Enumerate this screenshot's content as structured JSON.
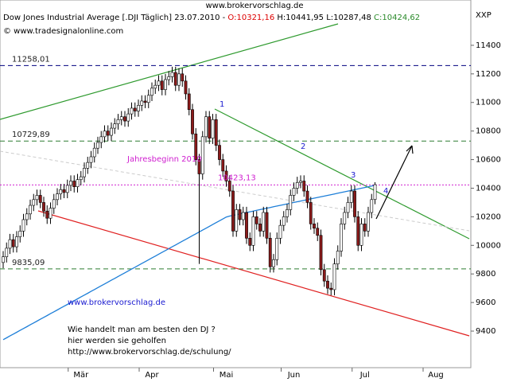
{
  "chart_data": {
    "type": "candlestick",
    "site_top": "www.brokervorschlag.de",
    "header": {
      "name": "Dow Jones Industrial Average [.DJI  Täglich] 23.07.2010 - ",
      "open": "O:10321,16",
      "high": "H:10441,95",
      "low": "L:10287,48",
      "close": "C:10424,62"
    },
    "copyright": "© www.tradesignalonline.com",
    "axis_label": "XXP",
    "watermark": "www.brokervorschlag.de",
    "promo": [
      "Wie handelt man am besten  den DJ ?",
      "hier werden sie geholfen",
      "http://www.brokervorschlag.de/schulung/"
    ],
    "annotation": "Jahresbeginn 2010",
    "wave_labels": [
      "1",
      "2",
      "3",
      "4"
    ],
    "categories": [
      null,
      null,
      null,
      null,
      null,
      null,
      null,
      null,
      null,
      null,
      null,
      null,
      null,
      null,
      null,
      null,
      null,
      null,
      null,
      null,
      null,
      null,
      null,
      "Mär",
      null,
      null,
      null,
      null,
      null,
      null,
      null,
      null,
      null,
      null,
      null,
      null,
      null,
      null,
      null,
      null,
      null,
      null,
      null,
      null,
      "Apr",
      null,
      null,
      null,
      null,
      null,
      null,
      null,
      null,
      null,
      null,
      null,
      null,
      null,
      null,
      null,
      null,
      null,
      null,
      null,
      null,
      null,
      "Mai",
      null,
      null,
      null,
      null,
      null,
      null,
      null,
      null,
      null,
      null,
      null,
      null,
      null,
      null,
      null,
      null,
      null,
      null,
      null,
      "Jun",
      null,
      null,
      null,
      null,
      null,
      null,
      null,
      null,
      null,
      null,
      null,
      null,
      null,
      null,
      null,
      null,
      null,
      null,
      null,
      null,
      "Jul",
      null,
      null,
      null,
      null,
      null,
      null,
      null,
      null,
      null,
      null,
      null,
      null,
      null,
      null,
      null,
      null,
      null,
      null,
      null,
      null,
      "Aug",
      null,
      null,
      null,
      null,
      null,
      null,
      null,
      null,
      null
    ],
    "open": [
      9880,
      9920,
      9980,
      10040,
      9990,
      10060,
      10100,
      10180,
      10220,
      10280,
      10320,
      10350,
      10300,
      10240,
      10190,
      10260,
      10320,
      10360,
      10390,
      10370,
      10420,
      10450,
      10410,
      10460,
      10480,
      10540,
      10580,
      10620,
      10680,
      10720,
      10760,
      10800,
      10770,
      10820,
      10850,
      10880,
      10900,
      10870,
      10920,
      10960,
      10940,
      10980,
      11010,
      11000,
      11050,
      11100,
      11120,
      11150,
      11090,
      11160,
      11180,
      11210,
      11120,
      11200,
      11150,
      11060,
      10950,
      10780,
      10600,
      10500,
      10760,
      10900,
      10750,
      10880,
      10700,
      10600,
      10520,
      10450,
      10380,
      10100,
      10250,
      10180,
      10230,
      10050,
      10000,
      10200,
      10150,
      10100,
      10230,
      10050,
      9850,
      9900,
      10050,
      10140,
      10200,
      10250,
      10350,
      10400,
      10440,
      10450,
      10380,
      10300,
      10150,
      10120,
      10070,
      9830,
      9750,
      9700,
      9690,
      9870,
      9960,
      10150,
      10230,
      10300,
      10380,
      10200,
      10000,
      10150,
      10100,
      10230,
      10321.16,
      null,
      null,
      null,
      null,
      null,
      null,
      null,
      null,
      null,
      null,
      null,
      null,
      null,
      null,
      null,
      null,
      null,
      null,
      null,
      null,
      null,
      null,
      null,
      null,
      null,
      null,
      null
    ],
    "high": [
      9960,
      10020,
      10080,
      10080,
      10100,
      10140,
      10220,
      10260,
      10320,
      10360,
      10390,
      10390,
      10340,
      10280,
      10300,
      10360,
      10400,
      10430,
      10430,
      10460,
      10490,
      10490,
      10500,
      10520,
      10580,
      10620,
      10660,
      10720,
      10760,
      10800,
      10840,
      10840,
      10860,
      10890,
      10920,
      10940,
      10940,
      10960,
      11000,
      11000,
      11020,
      11050,
      11050,
      11090,
      11140,
      11160,
      11190,
      11190,
      11200,
      11220,
      11250,
      11250,
      11240,
      11240,
      11190,
      11100,
      10990,
      10820,
      10640,
      10800,
      10940,
      10940,
      10920,
      10920,
      10740,
      10640,
      10560,
      10490,
      10420,
      10290,
      10290,
      10270,
      10270,
      10090,
      10240,
      10240,
      10190,
      10270,
      10270,
      10090,
      9940,
      10090,
      10180,
      10240,
      10290,
      10390,
      10440,
      10480,
      10490,
      10490,
      10420,
      10340,
      10190,
      10160,
      10110,
      9870,
      9790,
      9740,
      9910,
      10000,
      10190,
      10270,
      10340,
      10420,
      10420,
      10240,
      10190,
      10190,
      10270,
      10360,
      10441.95,
      null,
      null,
      null,
      null,
      null,
      null,
      null,
      null,
      null,
      null,
      null,
      null,
      null,
      null,
      null,
      null,
      null,
      null,
      null,
      null,
      null,
      null,
      null,
      null,
      null,
      null,
      null
    ],
    "low": [
      9840,
      9880,
      9940,
      9950,
      9950,
      10020,
      10060,
      10140,
      10180,
      10240,
      10280,
      10260,
      10200,
      10150,
      10150,
      10220,
      10280,
      10320,
      10330,
      10330,
      10380,
      10370,
      10370,
      10420,
      10440,
      10500,
      10540,
      10580,
      10640,
      10680,
      10720,
      10730,
      10730,
      10780,
      10810,
      10840,
      10830,
      10830,
      10880,
      10900,
      10900,
      10940,
      10960,
      10960,
      11010,
      11060,
      11080,
      11050,
      11050,
      11120,
      11140,
      11080,
      11080,
      11110,
      11020,
      10910,
      10740,
      10560,
      9870,
      10460,
      10720,
      10710,
      10710,
      10660,
      10560,
      10480,
      10410,
      10340,
      10060,
      10060,
      10140,
      10140,
      10010,
      9960,
      9960,
      10110,
      10060,
      10060,
      10010,
      9810,
      9810,
      9860,
      10010,
      10100,
      10160,
      10210,
      10310,
      10360,
      10400,
      10340,
      10260,
      10110,
      10080,
      10030,
      9790,
      9710,
      9660,
      9650,
      9650,
      9830,
      9920,
      10110,
      10190,
      10260,
      10160,
      9960,
      9960,
      10060,
      10060,
      10190,
      10287.48,
      null,
      null,
      null,
      null,
      null,
      null,
      null,
      null,
      null,
      null,
      null,
      null,
      null,
      null,
      null,
      null,
      null,
      null,
      null,
      null,
      null,
      null,
      null,
      null,
      null,
      null,
      null
    ],
    "close": [
      9920,
      9980,
      10040,
      9990,
      10060,
      10100,
      10180,
      10220,
      10280,
      10320,
      10350,
      10300,
      10240,
      10190,
      10260,
      10320,
      10360,
      10390,
      10370,
      10420,
      10450,
      10410,
      10460,
      10480,
      10540,
      10580,
      10620,
      10680,
      10720,
      10760,
      10800,
      10770,
      10820,
      10850,
      10880,
      10900,
      10870,
      10920,
      10960,
      10940,
      10980,
      11010,
      11000,
      11050,
      11100,
      11120,
      11150,
      11090,
      11160,
      11180,
      11210,
      11120,
      11200,
      11150,
      11060,
      10950,
      10780,
      10600,
      10500,
      10760,
      10900,
      10750,
      10880,
      10700,
      10600,
      10520,
      10450,
      10380,
      10100,
      10250,
      10180,
      10230,
      10050,
      10000,
      10200,
      10150,
      10100,
      10230,
      10050,
      9850,
      9900,
      10050,
      10140,
      10200,
      10250,
      10350,
      10400,
      10440,
      10450,
      10380,
      10300,
      10150,
      10120,
      10070,
      9830,
      9750,
      9700,
      9690,
      9870,
      9960,
      10150,
      10230,
      10300,
      10380,
      10200,
      10000,
      10150,
      10100,
      10230,
      10320,
      10424.62,
      null,
      null,
      null,
      null,
      null,
      null,
      null,
      null,
      null,
      null,
      null,
      null,
      null,
      null,
      null,
      null,
      null,
      null,
      null,
      null,
      null,
      null,
      null,
      null,
      null,
      null,
      null
    ],
    "up_color": "#ffffff",
    "down_color": "#8b1a1a",
    "wick_color": "#000000",
    "moving_average": {
      "color": "#1e7fd8",
      "values": [
        9340,
        9353,
        9366,
        9379,
        9392,
        9405,
        9418,
        9431,
        9444,
        9457,
        9470,
        9483,
        9496,
        9509,
        9522,
        9535,
        9548,
        9561,
        9574,
        9587,
        9600,
        9613,
        9626,
        9639,
        9652,
        9665,
        9678,
        9691,
        9704,
        9717,
        9730,
        9743,
        9756,
        9769,
        9782,
        9795,
        9808,
        9821,
        9834,
        9847,
        9860,
        9873,
        9886,
        9899,
        9912,
        9925,
        9938,
        9951,
        9964,
        9977,
        9990,
        10003,
        10016,
        10029,
        10042,
        10055,
        10068,
        10081,
        10094,
        10107,
        10120,
        10133,
        10146,
        10159,
        10172,
        10185,
        10198,
        10205,
        10210,
        10215,
        10220,
        10225,
        10230,
        10235,
        10240,
        10245,
        10250,
        10255,
        10260,
        10265,
        10270,
        10275,
        10280,
        10285,
        10290,
        10295,
        10300,
        10305,
        10310,
        10315,
        10320,
        10325,
        10330,
        10335,
        10340,
        10345,
        10350,
        10355,
        10360,
        10365,
        10370,
        10375,
        10380,
        10385,
        10390,
        10395,
        10400,
        10405,
        10410,
        10415,
        10420,
        null,
        null,
        null,
        null,
        null,
        null,
        null,
        null,
        null,
        null,
        null,
        null,
        null,
        null,
        null,
        null,
        null,
        null,
        null,
        null,
        null,
        null,
        null,
        null,
        null,
        null,
        null
      ]
    },
    "hlines": [
      {
        "value": 11258.01,
        "label": "11258,01",
        "color": "#000080"
      },
      {
        "value": 10729.89,
        "label": "10729,89",
        "color": "#2e7d32"
      },
      {
        "value": 10423.13,
        "label": "10423,13",
        "color": "#d020d0"
      },
      {
        "value": 9835.09,
        "label": "9835,09",
        "color": "#2e7d32"
      }
    ],
    "ylim": [
      9144,
      11717
    ],
    "yticks": [
      9400,
      9600,
      9800,
      10000,
      10200,
      10400,
      10600,
      10800,
      11000,
      11200,
      11400
    ]
  }
}
